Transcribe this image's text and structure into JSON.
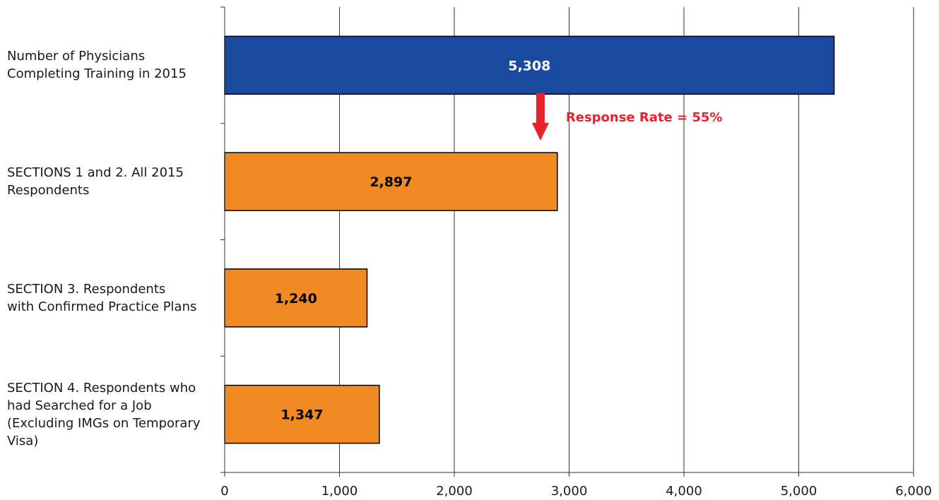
{
  "chart_data": {
    "type": "bar",
    "orientation": "horizontal",
    "categories": [
      [
        "Number of Physicians",
        "Completing Training in 2015"
      ],
      [
        "SECTIONS 1 and 2. All 2015",
        "Respondents"
      ],
      [
        "SECTION 3. Respondents",
        "with Confirmed Practice Plans"
      ],
      [
        "SECTION 4. Respondents who",
        "had Searched for a Job",
        "(Excluding IMGs on Temporary",
        "Visa)"
      ]
    ],
    "values": [
      5308,
      2897,
      1240,
      1347
    ],
    "data_labels": [
      "5,308",
      "2,897",
      "1,240",
      "1,347"
    ],
    "bar_colors": [
      "#1a4aa0",
      "#f28a24",
      "#f28a24",
      "#f28a24"
    ],
    "data_label_colors": [
      "#ffffff",
      "#000000",
      "#000000",
      "#000000"
    ],
    "xlim": [
      0,
      6000
    ],
    "x_ticks": [
      0,
      1000,
      2000,
      3000,
      4000,
      5000,
      6000
    ],
    "x_tick_labels": [
      "0",
      "1,000",
      "2,000",
      "3,000",
      "4,000",
      "5,000",
      "6,000"
    ],
    "grid": "vertical",
    "title": "",
    "xlabel": "",
    "ylabel": "",
    "annotation": {
      "text": "Response Rate = 55%",
      "color": "#e8212a",
      "arrow_at_value": 2750,
      "direction": "down"
    }
  }
}
